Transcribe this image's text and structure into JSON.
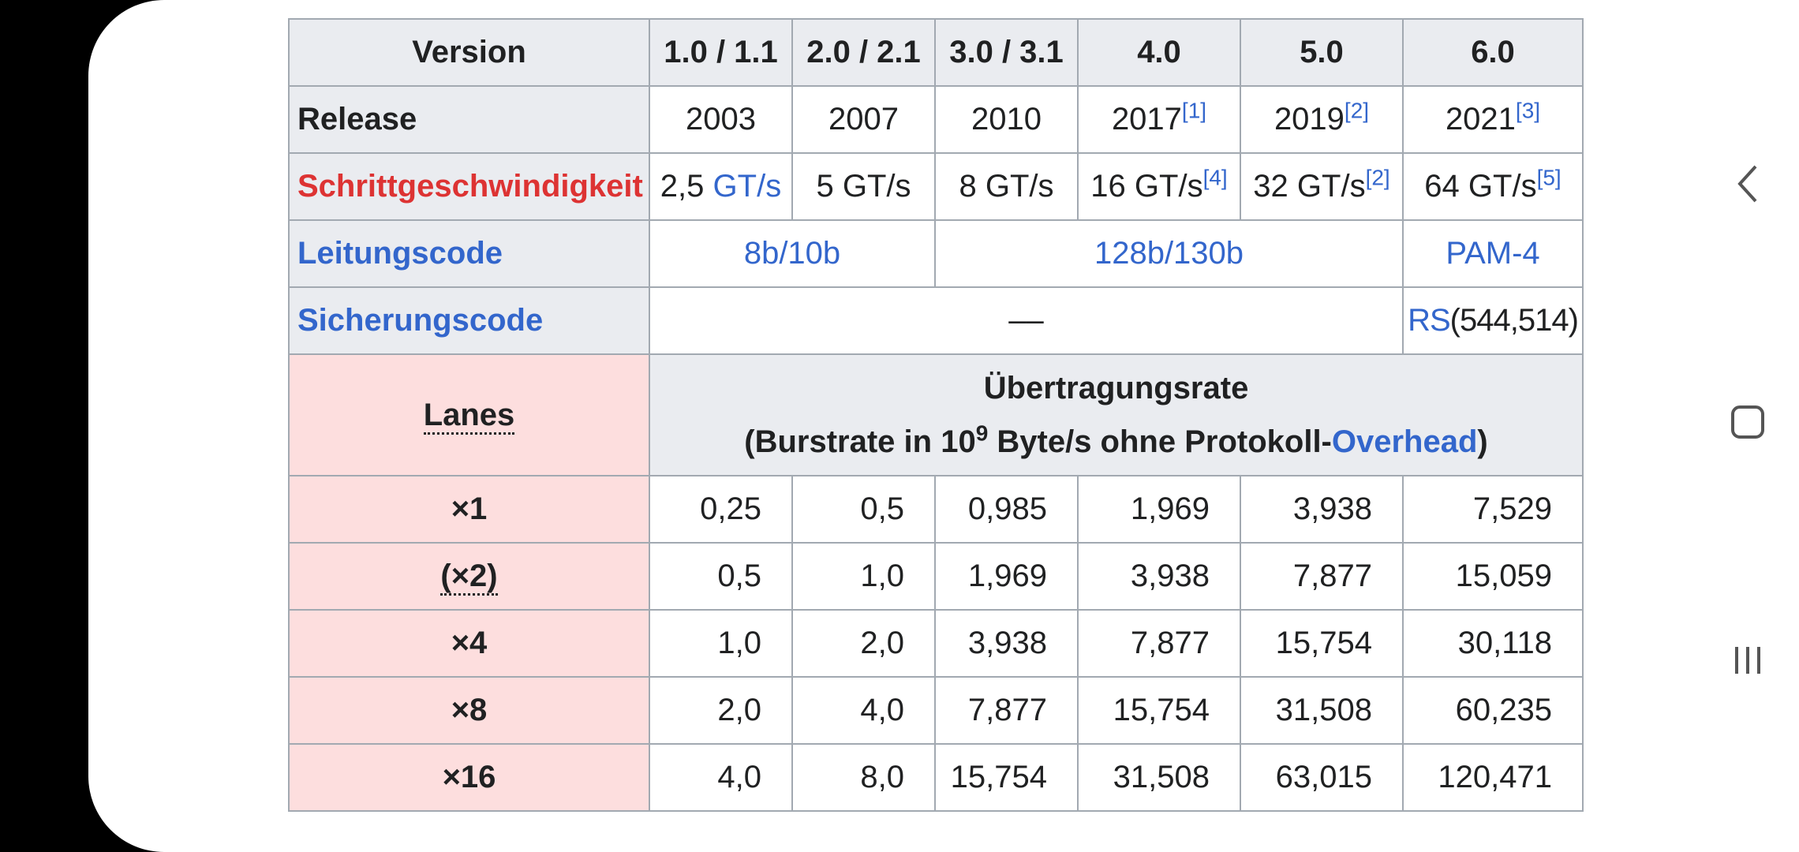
{
  "table": {
    "header": {
      "label": "Version",
      "versions": [
        "1.0 / 1.1",
        "2.0 / 2.1",
        "3.0 / 3.1",
        "4.0",
        "5.0",
        "6.0"
      ]
    },
    "release": {
      "label": "Release",
      "years": [
        "2003",
        "2007",
        "2010",
        "2017",
        "2019",
        "2021"
      ],
      "refs": [
        "",
        "",
        "",
        "[1]",
        "[2]",
        "[3]"
      ]
    },
    "speed": {
      "label": "Schrittgeschwindigkeit",
      "values": [
        "2,5",
        "5 GT/s",
        "8 GT/s",
        "16 GT/s",
        "32 GT/s",
        "64 GT/s"
      ],
      "first_unit": "GT/s",
      "refs": [
        "",
        "",
        "",
        "[4]",
        "[2]",
        "[5]"
      ]
    },
    "line_code": {
      "label": "Leitungscode",
      "values": [
        "8b/10b",
        "128b/130b",
        "PAM-4"
      ]
    },
    "fec": {
      "label": "Sicherungscode",
      "none": "––",
      "rs_link": "RS",
      "rs_params": "(544,514)"
    },
    "rate_header": {
      "lanes_label": "Lanes",
      "title": "Übertragungsrate",
      "sub_prefix": "(Burstrate in 10",
      "sub_exp": "9",
      "sub_middle": " Byte/s ohne Protokoll-",
      "sub_link": "Overhead",
      "sub_suffix": ")"
    },
    "rows": [
      {
        "lanes": "×1",
        "values": [
          "0,25",
          "0,5",
          "0,985",
          "1,969",
          "3,938",
          "7,529"
        ]
      },
      {
        "lanes": "(×2)",
        "values": [
          "0,5",
          "1,0",
          "1,969",
          "3,938",
          "7,877",
          "15,059"
        ]
      },
      {
        "lanes": "×4",
        "values": [
          "1,0",
          "2,0",
          "3,938",
          "7,877",
          "15,754",
          "30,118"
        ]
      },
      {
        "lanes": "×8",
        "values": [
          "2,0",
          "4,0",
          "7,877",
          "15,754",
          "31,508",
          "60,235"
        ]
      },
      {
        "lanes": "×16",
        "values": [
          "4,0",
          "8,0",
          "15,754",
          "31,508",
          "63,015",
          "120,471"
        ]
      }
    ]
  },
  "nav": {
    "back_icon": "chevron-left-icon",
    "home_icon": "home-square-icon",
    "recents_icon": "recents-icon"
  },
  "colors": {
    "link": "#3366cc",
    "red_link": "#dd3333",
    "header_bg": "#eaecf0",
    "lanes_bg": "#fddede"
  }
}
